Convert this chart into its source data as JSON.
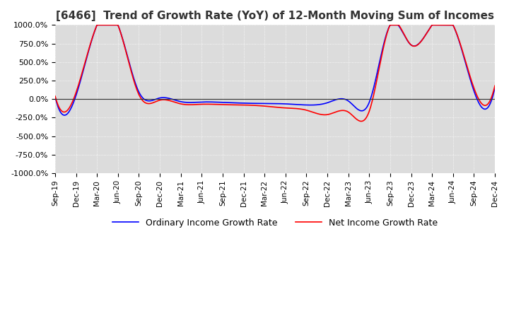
{
  "title": "[6466]  Trend of Growth Rate (YoY) of 12-Month Moving Sum of Incomes",
  "title_fontsize": 11,
  "ylim": [
    -1000,
    1000
  ],
  "yticks": [
    -1000,
    -750,
    -500,
    -250,
    0,
    250,
    500,
    750,
    1000
  ],
  "yticklabels": [
    "-1000.0%",
    "-750.0%",
    "-500.0%",
    "-250.0%",
    "0.0%",
    "250.0%",
    "500.0%",
    "750.0%",
    "1000.0%"
  ],
  "background_color": "#ffffff",
  "plot_bg_color": "#dcdcdc",
  "grid_color": "#ffffff",
  "grid_style": "dotted",
  "ordinary_color": "#0000ff",
  "net_color": "#ff0000",
  "legend_labels": [
    "Ordinary Income Growth Rate",
    "Net Income Growth Rate"
  ],
  "x_labels": [
    "Sep-19",
    "Dec-19",
    "Mar-20",
    "Jun-20",
    "Sep-20",
    "Dec-20",
    "Mar-21",
    "Jun-21",
    "Sep-21",
    "Dec-21",
    "Mar-22",
    "Jun-22",
    "Sep-22",
    "Dec-22",
    "Mar-23",
    "Jun-23",
    "Sep-23",
    "Dec-23",
    "Mar-24",
    "Jun-24",
    "Sep-24",
    "Dec-24"
  ],
  "ordinary_data": [
    30,
    50,
    1000,
    1000,
    95,
    15,
    -35,
    -40,
    -45,
    -55,
    -60,
    -65,
    -80,
    -50,
    -25,
    -45,
    1000,
    730,
    1000,
    1000,
    110,
    150
  ],
  "net_data": [
    40,
    90,
    1000,
    1000,
    60,
    -15,
    -65,
    -70,
    -75,
    -80,
    -95,
    -120,
    -150,
    -210,
    -175,
    -165,
    1000,
    730,
    1000,
    1000,
    150,
    180
  ]
}
